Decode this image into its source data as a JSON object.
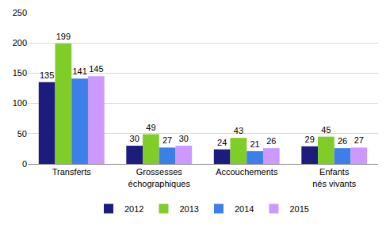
{
  "chart_data": {
    "type": "bar",
    "categories": [
      "Transferts",
      "Grossesses échographiques",
      "Accouchements",
      "Enfants nés vivants"
    ],
    "series": [
      {
        "name": "2012",
        "color": "#1c1c7c",
        "values": [
          135,
          30,
          24,
          29
        ]
      },
      {
        "name": "2013",
        "color": "#80cc28",
        "values": [
          199,
          49,
          43,
          45
        ]
      },
      {
        "name": "2014",
        "color": "#3d7fe8",
        "values": [
          141,
          27,
          21,
          26
        ]
      },
      {
        "name": "2015",
        "color": "#cc99ff",
        "values": [
          145,
          30,
          26,
          27
        ]
      }
    ],
    "ylim": [
      0,
      250
    ],
    "yticks": [
      0,
      50,
      100,
      150,
      200,
      250
    ],
    "grid": true,
    "legend": "bottom",
    "data_labels": true
  }
}
